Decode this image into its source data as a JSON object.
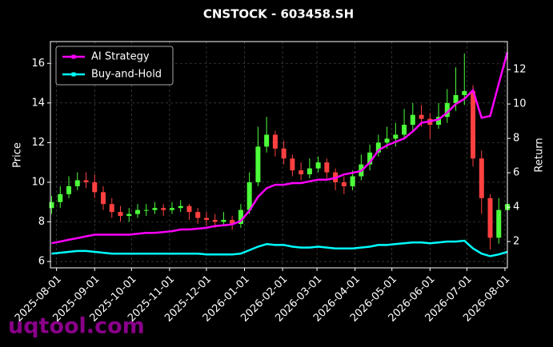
{
  "chart_data": {
    "type": "candlestick",
    "title": "CNSTOCK - 603458.SH",
    "ylabel": "Price",
    "y2label": "Return",
    "watermark": "uqtool.com",
    "x": [
      "2025-07-28",
      "2025-08-04",
      "2025-08-11",
      "2025-08-18",
      "2025-08-25",
      "2025-09-01",
      "2025-09-08",
      "2025-09-15",
      "2025-09-22",
      "2025-09-29",
      "2025-10-06",
      "2025-10-13",
      "2025-10-20",
      "2025-10-27",
      "2025-11-03",
      "2025-11-10",
      "2025-11-17",
      "2025-11-24",
      "2025-12-01",
      "2025-12-08",
      "2025-12-15",
      "2025-12-22",
      "2025-12-29",
      "2026-01-05",
      "2026-01-12",
      "2026-01-19",
      "2026-01-26",
      "2026-02-02",
      "2026-02-09",
      "2026-02-16",
      "2026-02-23",
      "2026-03-02",
      "2026-03-09",
      "2026-03-16",
      "2026-03-23",
      "2026-03-30",
      "2026-04-06",
      "2026-04-13",
      "2026-04-20",
      "2026-04-27",
      "2026-05-04",
      "2026-05-11",
      "2026-05-18",
      "2026-05-25",
      "2026-06-01",
      "2026-06-08",
      "2026-06-15",
      "2026-06-22",
      "2026-06-29",
      "2026-07-06",
      "2026-07-13",
      "2026-07-20",
      "2026-07-27",
      "2026-08-03"
    ],
    "open": [
      8.7,
      9.0,
      9.4,
      9.8,
      10.1,
      10.0,
      9.5,
      8.9,
      8.5,
      8.3,
      8.4,
      8.6,
      8.6,
      8.7,
      8.6,
      8.7,
      8.8,
      8.5,
      8.2,
      8.1,
      8.0,
      8.1,
      7.9,
      8.6,
      10.0,
      11.8,
      12.4,
      11.7,
      11.2,
      10.6,
      10.4,
      10.7,
      11.0,
      10.5,
      10.0,
      9.8,
      10.3,
      10.9,
      11.5,
      12.0,
      12.2,
      12.4,
      12.9,
      13.4,
      13.2,
      12.9,
      13.3,
      14.0,
      14.4,
      14.6,
      11.2,
      9.2,
      7.2,
      8.6
    ],
    "high": [
      9.3,
      9.8,
      10.3,
      10.5,
      10.5,
      10.4,
      9.8,
      9.2,
      8.8,
      8.7,
      8.9,
      8.9,
      9.0,
      8.9,
      9.0,
      9.1,
      8.9,
      8.7,
      8.5,
      8.4,
      8.5,
      8.3,
      8.9,
      10.5,
      12.8,
      13.3,
      12.6,
      12.1,
      11.4,
      11.0,
      11.2,
      11.3,
      11.2,
      10.7,
      10.3,
      10.6,
      11.4,
      11.9,
      12.4,
      12.8,
      13.0,
      13.7,
      14.0,
      13.9,
      13.5,
      14.0,
      14.7,
      15.8,
      16.5,
      14.9,
      11.6,
      9.4,
      9.2,
      9.3
    ],
    "low": [
      8.4,
      8.7,
      9.2,
      9.6,
      9.7,
      9.2,
      8.6,
      8.2,
      8.0,
      8.0,
      8.2,
      8.3,
      8.4,
      8.3,
      8.4,
      8.5,
      8.1,
      7.9,
      7.8,
      7.7,
      7.8,
      7.6,
      7.7,
      8.4,
      9.8,
      11.5,
      11.3,
      10.9,
      10.3,
      10.1,
      10.2,
      10.5,
      10.2,
      9.6,
      9.4,
      9.6,
      10.1,
      10.6,
      11.3,
      11.7,
      11.8,
      12.2,
      12.6,
      12.8,
      12.2,
      12.7,
      13.0,
      13.6,
      13.9,
      10.8,
      8.4,
      6.6,
      6.9,
      8.3
    ],
    "close": [
      9.0,
      9.4,
      9.8,
      10.1,
      10.0,
      9.5,
      8.9,
      8.5,
      8.3,
      8.4,
      8.6,
      8.6,
      8.7,
      8.6,
      8.7,
      8.8,
      8.5,
      8.2,
      8.1,
      8.0,
      8.1,
      7.9,
      8.6,
      10.0,
      11.8,
      12.4,
      11.7,
      11.2,
      10.6,
      10.4,
      10.7,
      11.0,
      10.5,
      10.0,
      9.8,
      10.3,
      10.9,
      11.5,
      12.0,
      12.2,
      12.4,
      12.9,
      13.4,
      13.2,
      12.9,
      13.3,
      14.0,
      14.4,
      14.6,
      11.2,
      9.2,
      7.2,
      8.6,
      8.9
    ],
    "up_color": "#4cff3a",
    "down_color": "#ff4040",
    "series": [
      {
        "name": "AI Strategy",
        "color": "#ff00ff",
        "axis": "y2",
        "values": [
          1.9,
          2.0,
          2.1,
          2.2,
          2.3,
          2.4,
          2.4,
          2.4,
          2.4,
          2.4,
          2.45,
          2.5,
          2.5,
          2.55,
          2.6,
          2.7,
          2.7,
          2.75,
          2.8,
          2.9,
          2.95,
          3.0,
          3.2,
          3.8,
          4.6,
          5.1,
          5.3,
          5.3,
          5.4,
          5.4,
          5.5,
          5.6,
          5.6,
          5.7,
          5.9,
          6.0,
          6.1,
          6.6,
          7.3,
          7.6,
          7.8,
          8.0,
          8.4,
          8.9,
          9.0,
          9.1,
          9.5,
          10.0,
          10.3,
          10.8,
          9.2,
          9.3,
          11.2,
          13.0
        ]
      },
      {
        "name": "Buy-and-Hold",
        "color": "#00ffff",
        "axis": "y2",
        "values": [
          1.3,
          1.35,
          1.4,
          1.45,
          1.45,
          1.4,
          1.35,
          1.3,
          1.3,
          1.3,
          1.3,
          1.3,
          1.3,
          1.3,
          1.3,
          1.3,
          1.3,
          1.3,
          1.25,
          1.25,
          1.25,
          1.25,
          1.3,
          1.5,
          1.7,
          1.85,
          1.8,
          1.8,
          1.7,
          1.65,
          1.65,
          1.7,
          1.65,
          1.6,
          1.6,
          1.6,
          1.65,
          1.7,
          1.8,
          1.8,
          1.85,
          1.9,
          1.95,
          1.95,
          1.9,
          1.95,
          2.0,
          2.0,
          2.05,
          1.6,
          1.3,
          1.15,
          1.25,
          1.4
        ]
      }
    ],
    "xlim": [
      "2025-07-27",
      "2026-08-03"
    ],
    "xticks": [
      "2025-08-01",
      "2025-09-01",
      "2025-10-01",
      "2025-11-01",
      "2025-12-01",
      "2026-01-01",
      "2026-02-01",
      "2026-03-01",
      "2026-04-01",
      "2026-05-01",
      "2026-06-01",
      "2026-07-01",
      "2026-08-01"
    ],
    "ylim": [
      5.68,
      17.1
    ],
    "yticks": [
      6,
      8,
      10,
      12,
      14,
      16
    ],
    "y2lim": [
      0.47,
      13.63
    ],
    "y2ticks": [
      2,
      4,
      6,
      8,
      10,
      12
    ],
    "grid": true,
    "legend": "upper left"
  }
}
